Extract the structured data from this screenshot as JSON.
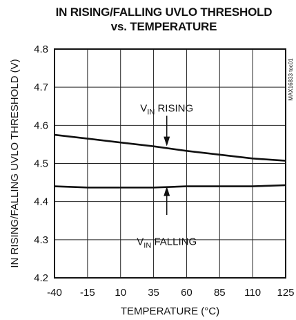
{
  "chart_data": {
    "type": "line",
    "title_line1": "IN RISING/FALLING UVLO THRESHOLD",
    "title_line2": "vs. TEMPERATURE",
    "xlabel": "TEMPERATURE (°C)",
    "ylabel": "IN RISING/FALLING UVLO THRESHOLD (V)",
    "figure_code": "MAX16833 toc01",
    "xlim": [
      -40,
      125
    ],
    "ylim": [
      4.2,
      4.8
    ],
    "x_tick_positions": [
      -40,
      -15,
      10,
      35,
      60,
      85,
      110,
      125
    ],
    "x_ticks": [
      "-40",
      "-15",
      "10",
      "35",
      "60",
      "85",
      "110",
      "125"
    ],
    "y_ticks": [
      {
        "value": 4.2,
        "label": "4.2"
      },
      {
        "value": 4.3,
        "label": "4.3"
      },
      {
        "value": 4.4,
        "label": "4.4"
      },
      {
        "value": 4.5,
        "label": "4.5"
      },
      {
        "value": 4.6,
        "label": "4.6"
      },
      {
        "value": 4.7,
        "label": "4.7"
      },
      {
        "value": 4.8,
        "label": "4.8"
      }
    ],
    "grid": true,
    "series": [
      {
        "name": "RISING",
        "x": [
          -40,
          -15,
          10,
          35,
          60,
          85,
          110,
          125
        ],
        "y": [
          4.575,
          4.565,
          4.555,
          4.545,
          4.533,
          4.523,
          4.513,
          4.507
        ]
      },
      {
        "name": "FALLING",
        "x": [
          -40,
          -15,
          10,
          35,
          45,
          60,
          85,
          110,
          125
        ],
        "y": [
          4.44,
          4.437,
          4.437,
          4.437,
          4.438,
          4.44,
          4.44,
          4.44,
          4.443
        ]
      }
    ],
    "annotations": [
      {
        "prefix": "V",
        "subscript": "IN",
        "text": " RISING",
        "label_x": 45,
        "label_y": 4.645,
        "arrow_from_y": 4.625,
        "arrow_to_y": 4.545
      },
      {
        "prefix": "V",
        "subscript": "IN",
        "text": " FALLING",
        "label_x": 45,
        "label_y": 4.295,
        "arrow_from_y": 4.365,
        "arrow_to_y": 4.44
      }
    ]
  }
}
